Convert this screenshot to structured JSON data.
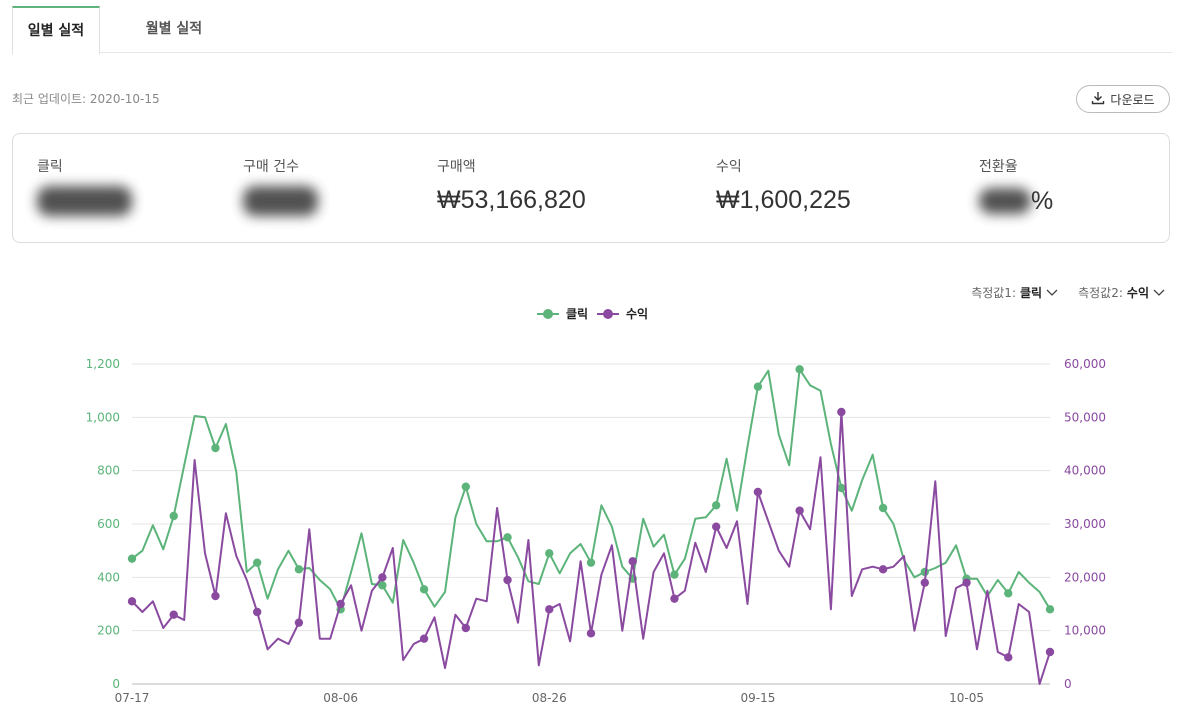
{
  "tabs": [
    {
      "label": "일별 실적"
    },
    {
      "label": "월별 실적"
    }
  ],
  "update_text": "최근 업데이트: 2020-10-15",
  "download_label": "다운로드",
  "metrics": [
    {
      "label": "클릭",
      "value": ""
    },
    {
      "label": "구매 건수",
      "value": ""
    },
    {
      "label": "구매액",
      "value": "₩53,166,820"
    },
    {
      "label": "수익",
      "value": "₩1,600,225"
    },
    {
      "label": "전환율",
      "value": "%"
    }
  ],
  "controls": [
    {
      "label": "측정값1:",
      "value": "클릭"
    },
    {
      "label": "측정값2:",
      "value": "수익"
    }
  ],
  "colors": {
    "click": "#5cb47a",
    "revenue": "#8a4aa0",
    "grid": "#e4e4e4"
  },
  "chart_data": {
    "type": "line",
    "x_ticks": [
      "07-17",
      "08-06",
      "08-26",
      "09-15",
      "10-05"
    ],
    "x_tick_index": [
      0,
      20,
      40,
      60,
      80
    ],
    "y_left": {
      "ticks": [
        "0",
        "200",
        "400",
        "600",
        "800",
        "1,000",
        "1,200"
      ],
      "range": [
        0,
        1200
      ]
    },
    "y_right": {
      "ticks": [
        "0",
        "10,000",
        "20,000",
        "30,000",
        "40,000",
        "50,000",
        "60,000"
      ],
      "range": [
        0,
        60000
      ]
    },
    "series": [
      {
        "name": "클릭",
        "axis": "left",
        "values": [
          470,
          500,
          595,
          505,
          630,
          820,
          1005,
          1000,
          885,
          975,
          795,
          420,
          455,
          320,
          430,
          500,
          430,
          435,
          390,
          355,
          280,
          420,
          565,
          375,
          370,
          305,
          540,
          455,
          355,
          290,
          345,
          625,
          740,
          600,
          535,
          535,
          550,
          475,
          385,
          375,
          490,
          415,
          490,
          525,
          455,
          670,
          590,
          440,
          395,
          620,
          515,
          560,
          410,
          470,
          620,
          625,
          670,
          845,
          650,
          890,
          1115,
          1175,
          935,
          820,
          1180,
          1120,
          1100,
          900,
          735,
          650,
          765,
          860,
          660,
          600,
          465,
          400,
          420,
          435,
          455,
          520,
          395,
          395,
          330,
          390,
          340,
          420,
          380,
          345,
          280
        ]
      },
      {
        "name": "수익",
        "axis": "right",
        "values": [
          15500,
          13500,
          15500,
          10500,
          13000,
          12000,
          42000,
          24500,
          16500,
          32000,
          24000,
          19500,
          13500,
          6500,
          8500,
          7500,
          11500,
          29000,
          8500,
          8500,
          15000,
          18500,
          10000,
          17500,
          20000,
          25500,
          4500,
          7500,
          8500,
          12500,
          3000,
          13000,
          10500,
          16000,
          15500,
          33000,
          19500,
          11500,
          27000,
          3500,
          14000,
          15000,
          8000,
          23000,
          9500,
          20500,
          26000,
          10000,
          23000,
          8500,
          21000,
          24500,
          16000,
          17500,
          26500,
          21000,
          29500,
          25500,
          30500,
          15000,
          36000,
          30500,
          25000,
          22000,
          32500,
          29000,
          42500,
          14000,
          51000,
          16500,
          21500,
          22000,
          21500,
          22000,
          24000,
          10000,
          19000,
          38000,
          9000,
          18000,
          19000,
          6500,
          17500,
          6000,
          5000,
          15000,
          13500,
          0,
          6000
        ]
      }
    ],
    "legend": "top-center"
  }
}
